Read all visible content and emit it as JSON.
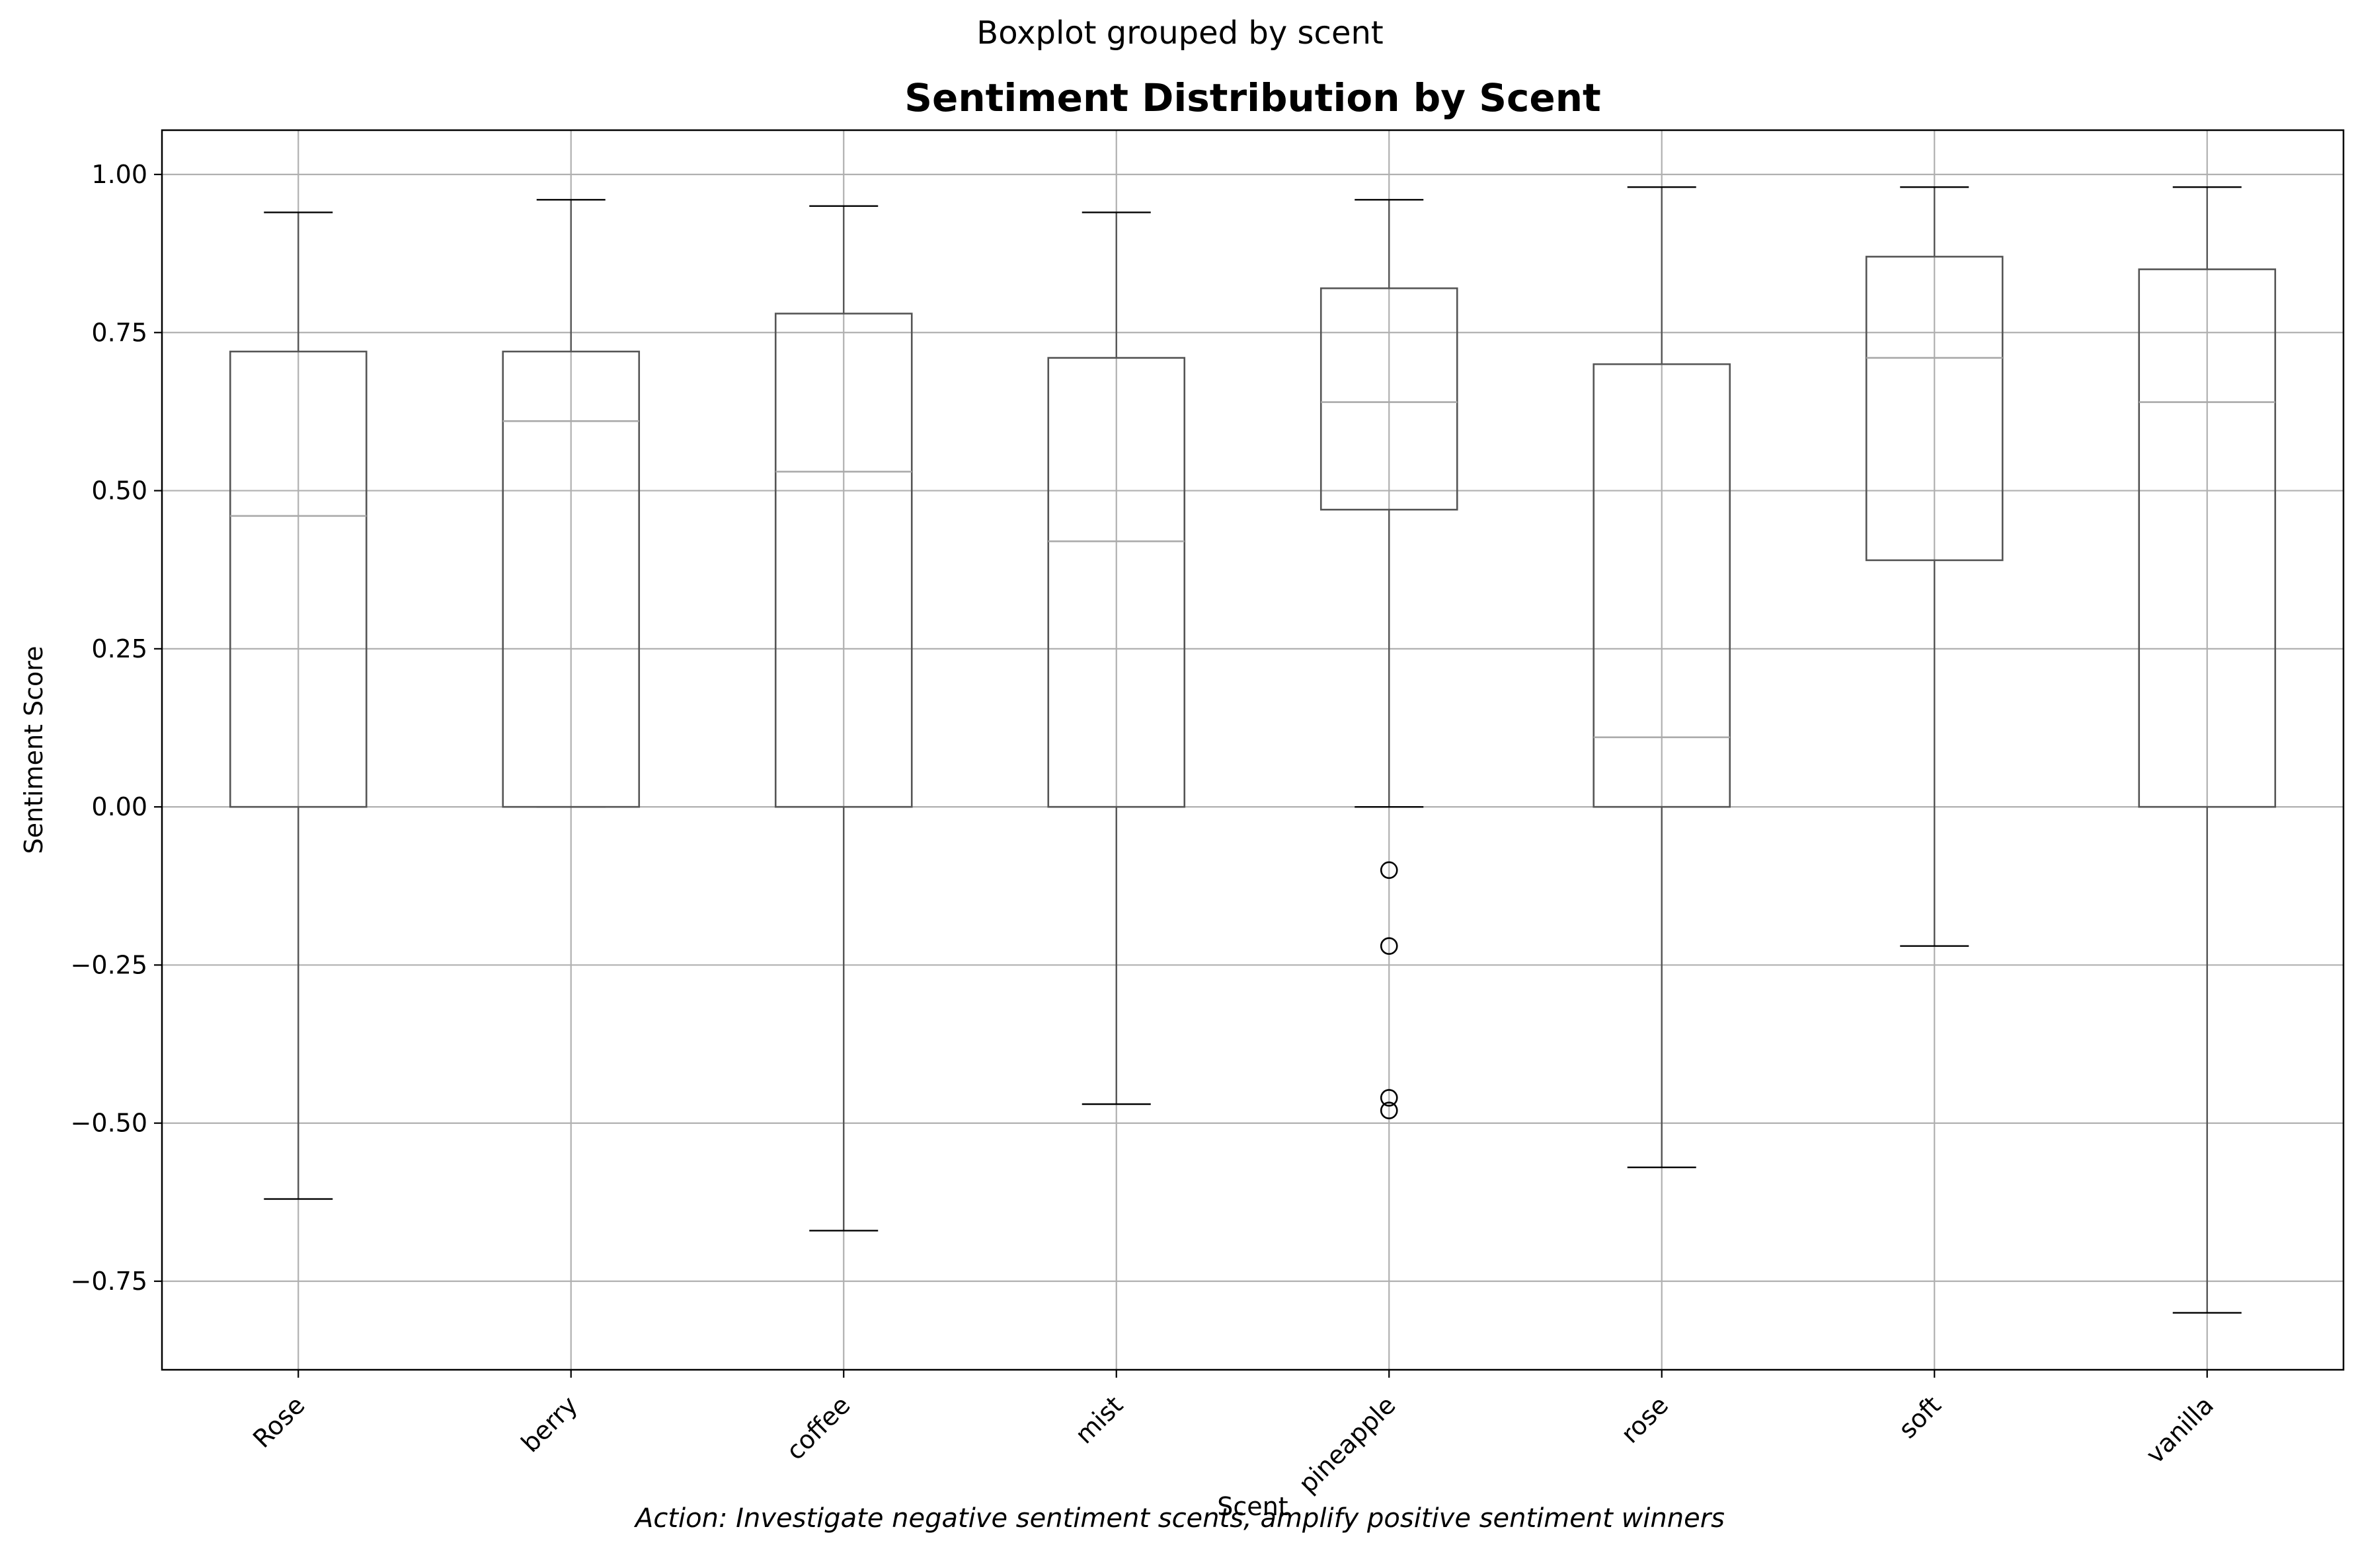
{
  "chart_data": {
    "type": "boxplot",
    "suptitle": "Boxplot grouped by scent",
    "title": "Sentiment Distribution by Scent",
    "xlabel": "Scent",
    "ylabel": "Sentiment Score",
    "caption": "Action: Investigate negative sentiment scents, amplify positive sentiment winners",
    "ylim": [
      -0.89,
      1.07
    ],
    "yticks": [
      1.0,
      0.75,
      0.5,
      0.25,
      0.0,
      -0.25,
      -0.5,
      -0.75
    ],
    "ytick_labels": [
      "1.00",
      "0.75",
      "0.50",
      "0.25",
      "0.00",
      "−0.25",
      "−0.50",
      "−0.75"
    ],
    "grid": true,
    "categories": [
      "Rose",
      "berry",
      "coffee",
      "mist",
      "pineapple",
      "rose",
      "soft",
      "vanilla"
    ],
    "boxes": [
      {
        "category": "Rose",
        "whisker_low": -0.62,
        "q1": 0.0,
        "median": 0.46,
        "q3": 0.72,
        "whisker_high": 0.94,
        "outliers": []
      },
      {
        "category": "berry",
        "whisker_low": 0.0,
        "q1": 0.0,
        "median": 0.61,
        "q3": 0.72,
        "whisker_high": 0.96,
        "outliers": []
      },
      {
        "category": "coffee",
        "whisker_low": -0.67,
        "q1": 0.0,
        "median": 0.53,
        "q3": 0.78,
        "whisker_high": 0.95,
        "outliers": []
      },
      {
        "category": "mist",
        "whisker_low": -0.47,
        "q1": 0.0,
        "median": 0.42,
        "q3": 0.71,
        "whisker_high": 0.94,
        "outliers": []
      },
      {
        "category": "pineapple",
        "whisker_low": 0.0,
        "q1": 0.47,
        "median": 0.64,
        "q3": 0.82,
        "whisker_high": 0.96,
        "outliers": [
          -0.1,
          -0.22,
          -0.46,
          -0.48
        ]
      },
      {
        "category": "rose",
        "whisker_low": -0.57,
        "q1": 0.0,
        "median": 0.11,
        "q3": 0.7,
        "whisker_high": 0.98,
        "outliers": []
      },
      {
        "category": "soft",
        "whisker_low": -0.22,
        "q1": 0.39,
        "median": 0.71,
        "q3": 0.87,
        "whisker_high": 0.98,
        "outliers": []
      },
      {
        "category": "vanilla",
        "whisker_low": -0.8,
        "q1": 0.0,
        "median": 0.64,
        "q3": 0.85,
        "whisker_high": 0.98,
        "outliers": []
      }
    ],
    "colors": {
      "box": "#555555",
      "median": "#aaaaaa",
      "whisker": "#555555",
      "cap": "#000000",
      "grid": "#b0b0b0",
      "spine": "#000000",
      "outlier": "#000000"
    }
  }
}
